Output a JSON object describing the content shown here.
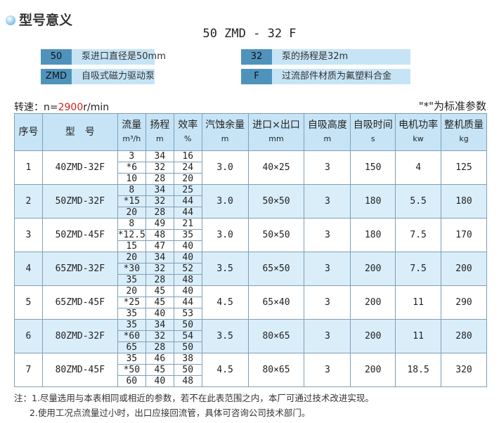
{
  "header": {
    "title": "型号意义",
    "icon": "sphere-bullet-icon",
    "model_code": "50 ZMD - 32 F"
  },
  "legend": [
    {
      "code": "50",
      "meaning": "泵进口直径是50mm"
    },
    {
      "code": "32",
      "meaning": "泵的扬程是32m"
    },
    {
      "code": "ZMD",
      "meaning": "自吸式磁力驱动泵"
    },
    {
      "code": "F",
      "meaning": "过流部件材质为氟塑料合金"
    }
  ],
  "speed": {
    "label": "转速：n=",
    "value": "2900",
    "unit": "r/min"
  },
  "standard_note": "\"*\"为标准参数",
  "colors": {
    "header_bg": "#c6e4f6",
    "code_bg": "#4f93bd",
    "alt_row": "#daeefa",
    "speed_value": "#d0201c"
  },
  "table": {
    "headers": [
      {
        "label": "序号",
        "unit": ""
      },
      {
        "label": "型　号",
        "unit": ""
      },
      {
        "label": "流量",
        "unit": "m³/h"
      },
      {
        "label": "扬程",
        "unit": "m"
      },
      {
        "label": "效率",
        "unit": "%"
      },
      {
        "label": "汽蚀余量",
        "unit": "m"
      },
      {
        "label": "进口×出口",
        "unit": "mm"
      },
      {
        "label": "自吸高度",
        "unit": "m"
      },
      {
        "label": "自吸时间",
        "unit": "s"
      },
      {
        "label": "电机功率",
        "unit": "kw"
      },
      {
        "label": "整机质量",
        "unit": "kg"
      }
    ],
    "rows": [
      {
        "no": "1",
        "model": "40ZMD-32F",
        "flow": [
          "3",
          "*6",
          "10"
        ],
        "head": [
          "34",
          "32",
          "28"
        ],
        "eff": [
          "16",
          "24",
          "20"
        ],
        "npsh": "3.0",
        "port": "40×25",
        "suction_height": "3",
        "suction_time": "150",
        "power": "4",
        "mass": "125"
      },
      {
        "no": "2",
        "model": "50ZMD-32F",
        "flow": [
          "8",
          "*15",
          "20"
        ],
        "head": [
          "34",
          "32",
          "28"
        ],
        "eff": [
          "25",
          "44",
          "44"
        ],
        "npsh": "3.0",
        "port": "50×50",
        "suction_height": "3",
        "suction_time": "180",
        "power": "5.5",
        "mass": "180"
      },
      {
        "no": "3",
        "model": "50ZMD-45F",
        "flow": [
          "8",
          "*12.5",
          "15"
        ],
        "head": [
          "49",
          "48",
          "47"
        ],
        "eff": [
          "21",
          "35",
          "40"
        ],
        "npsh": "3.0",
        "port": "50×50",
        "suction_height": "3",
        "suction_time": "180",
        "power": "7.5",
        "mass": "170"
      },
      {
        "no": "4",
        "model": "65ZMD-32F",
        "flow": [
          "20",
          "*30",
          "35"
        ],
        "head": [
          "34",
          "32",
          "28"
        ],
        "eff": [
          "40",
          "52",
          "48"
        ],
        "npsh": "3.5",
        "port": "65×50",
        "suction_height": "3",
        "suction_time": "200",
        "power": "7.5",
        "mass": "200"
      },
      {
        "no": "5",
        "model": "65ZMD-45F",
        "flow": [
          "20",
          "*25",
          "35"
        ],
        "head": [
          "45",
          "45",
          "40"
        ],
        "eff": [
          "40",
          "44",
          "53"
        ],
        "npsh": "4.5",
        "port": "65×40",
        "suction_height": "3",
        "suction_time": "200",
        "power": "11",
        "mass": "290"
      },
      {
        "no": "6",
        "model": "80ZMD-32F",
        "flow": [
          "35",
          "*60",
          "65"
        ],
        "head": [
          "34",
          "32",
          "28"
        ],
        "eff": [
          "50",
          "54",
          "50"
        ],
        "npsh": "3.5",
        "port": "80×65",
        "suction_height": "3",
        "suction_time": "200",
        "power": "11",
        "mass": "280"
      },
      {
        "no": "7",
        "model": "80ZMD-45F",
        "flow": [
          "35",
          "*50",
          "60"
        ],
        "head": [
          "46",
          "45",
          "40"
        ],
        "eff": [
          "38",
          "50",
          "48"
        ],
        "npsh": "4.5",
        "port": "80×65",
        "suction_height": "3",
        "suction_time": "200",
        "power": "18.5",
        "mass": "320"
      }
    ]
  },
  "notes": [
    "注：1.尽量选用与本表相同或相近的参数，若不在此表范围之内，本厂可通过技术改进实现。",
    "2.使用工况点流量过小时，出口应接回流管，具体可咨询公司技术部门。"
  ]
}
